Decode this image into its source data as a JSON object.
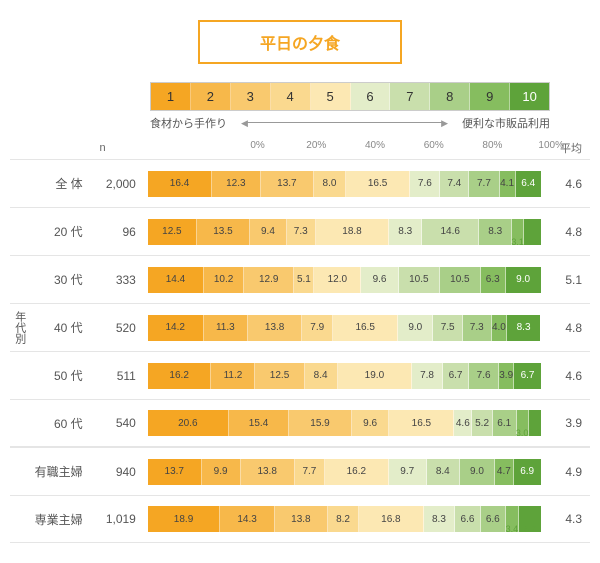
{
  "title": "平日の夕食",
  "legend": {
    "left_label": "食材から手作り",
    "right_label": "便利な市販品利用",
    "values": [
      "1",
      "2",
      "3",
      "4",
      "5",
      "6",
      "7",
      "8",
      "9",
      "10"
    ]
  },
  "colors": [
    "#f5a623",
    "#f7b84a",
    "#f9c96e",
    "#fad98f",
    "#fce8b3",
    "#e3edc9",
    "#c9dfac",
    "#a9cf88",
    "#86bd5f",
    "#5ea33a"
  ],
  "light_text_indices": [
    9
  ],
  "axis_ticks": [
    "0%",
    "20%",
    "40%",
    "60%",
    "80%",
    "100%"
  ],
  "header": {
    "n": "n",
    "avg": "平均"
  },
  "side_group_label": "年代別",
  "rows": [
    {
      "cat": "全 体",
      "n": "2,000",
      "avg": "4.6",
      "side": "",
      "segs": [
        16.4,
        12.3,
        13.7,
        8.0,
        16.5,
        7.6,
        7.4,
        7.7,
        4.1,
        6.4
      ]
    },
    {
      "cat": "20 代",
      "n": "96",
      "avg": "4.8",
      "side": "",
      "segs": [
        12.5,
        13.5,
        9.4,
        7.3,
        18.8,
        8.3,
        14.6,
        8.3,
        3.1,
        4.2
      ],
      "ov": {
        "8": "3.1",
        "9": "4.2"
      }
    },
    {
      "cat": "30 代",
      "n": "333",
      "avg": "5.1",
      "side": "",
      "segs": [
        14.4,
        10.2,
        12.9,
        5.1,
        12.0,
        9.6,
        10.5,
        10.5,
        6.3,
        9.0
      ]
    },
    {
      "cat": "40 代",
      "n": "520",
      "avg": "4.8",
      "side": "年代別",
      "segs": [
        14.2,
        11.3,
        13.8,
        7.9,
        16.5,
        9.0,
        7.5,
        7.3,
        4.0,
        8.3
      ]
    },
    {
      "cat": "50 代",
      "n": "511",
      "avg": "4.6",
      "side": "",
      "segs": [
        16.2,
        11.2,
        12.5,
        8.4,
        19.0,
        7.8,
        6.7,
        7.6,
        3.9,
        6.7
      ]
    },
    {
      "cat": "60 代",
      "n": "540",
      "avg": "3.9",
      "side": "",
      "segs": [
        20.6,
        15.4,
        15.9,
        9.6,
        16.5,
        4.6,
        5.2,
        6.1,
        3.0,
        3.1
      ],
      "ov": {
        "8": "3.0",
        "9": "3.1"
      },
      "group_end": true
    },
    {
      "cat": "有職主婦",
      "n": "940",
      "avg": "4.9",
      "side": "",
      "segs": [
        13.7,
        9.9,
        13.8,
        7.7,
        16.2,
        9.7,
        8.4,
        9.0,
        4.7,
        6.9
      ]
    },
    {
      "cat": "専業主婦",
      "n": "1,019",
      "avg": "4.3",
      "side": "",
      "segs": [
        18.9,
        14.3,
        13.8,
        8.2,
        16.8,
        8.3,
        6.6,
        6.6,
        3.4,
        5.7
      ],
      "ov": {
        "8": "3.4",
        "9": "5.7"
      },
      "group_end": true
    }
  ]
}
